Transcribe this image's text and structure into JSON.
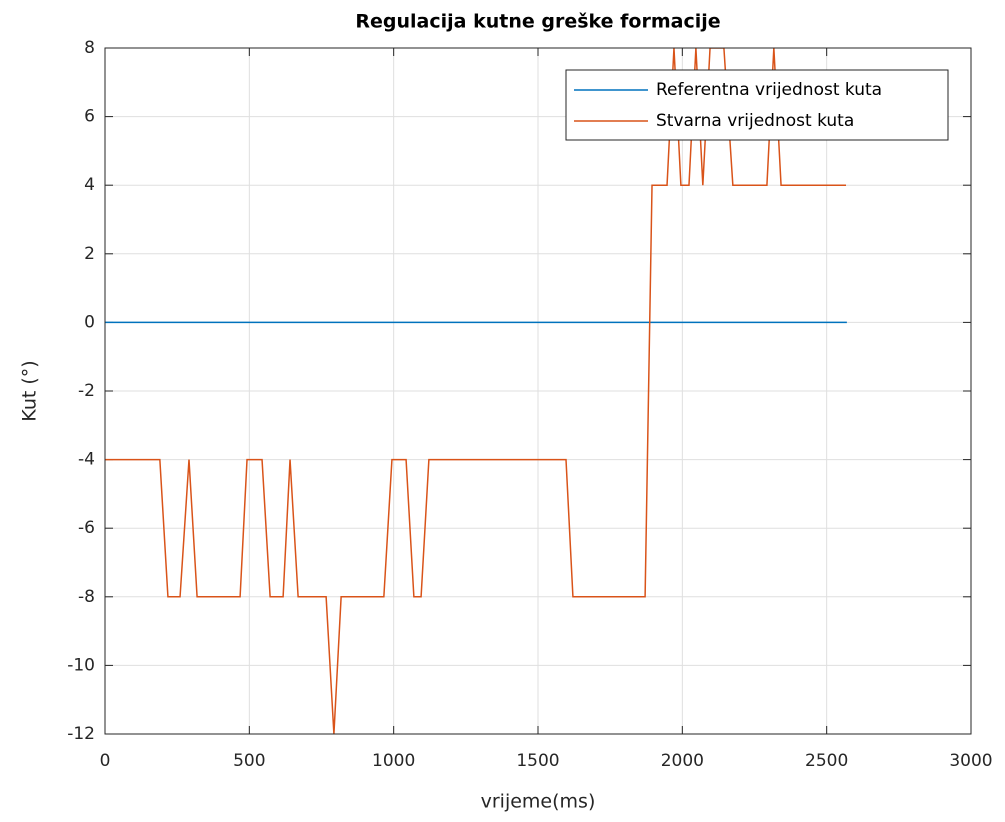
{
  "chart_data": {
    "type": "line",
    "title": "Regulacija kutne greške formacije",
    "xlabel": "vrijeme(ms)",
    "ylabel": "Kut (°)",
    "xlim": [
      0,
      3000
    ],
    "xticks": [
      0,
      500,
      1000,
      1500,
      2000,
      2500,
      3000
    ],
    "ylim": [
      -12,
      8
    ],
    "yticks": [
      -12,
      -10,
      -8,
      -6,
      -4,
      -2,
      0,
      2,
      4,
      6,
      8
    ],
    "grid": true,
    "legend": "northeast",
    "series": [
      {
        "name": "Referentna vrijednost kuta",
        "color": "#0072BD",
        "x": [
          0,
          2570
        ],
        "values": [
          0,
          0
        ]
      },
      {
        "name": "Stvarna vrijednost kuta",
        "color": "#D95319",
        "x": [
          0,
          190,
          218,
          260,
          291,
          319,
          468,
          492,
          544,
          572,
          617,
          641,
          669,
          766,
          793,
          818,
          966,
          994,
          1043,
          1070,
          1095,
          1122,
          1597,
          1621,
          1871,
          1895,
          1947,
          1971,
          1995,
          2023,
          2047,
          2071,
          2096,
          2144,
          2175,
          2293,
          2317,
          2342,
          2567
        ],
        "values": [
          -4,
          -4,
          -8,
          -8,
          -4,
          -8,
          -8,
          -4,
          -4,
          -8,
          -8,
          -4,
          -8,
          -8,
          -12,
          -8,
          -8,
          -4,
          -4,
          -8,
          -8,
          -4,
          -4,
          -8,
          -8,
          4,
          4,
          8,
          4,
          4,
          8,
          4,
          8,
          8,
          4,
          4,
          8,
          4,
          4
        ]
      }
    ]
  }
}
